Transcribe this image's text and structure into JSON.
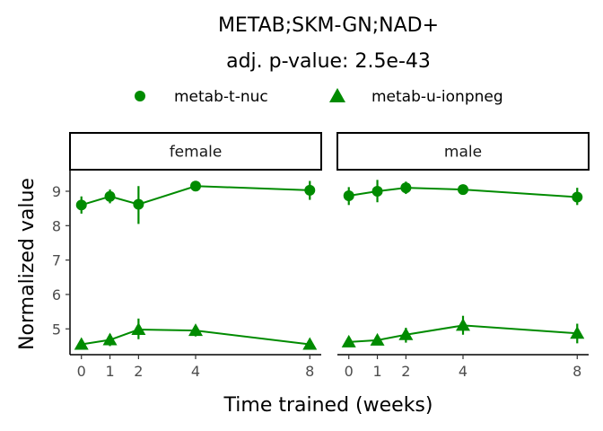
{
  "chart_data": {
    "type": "line",
    "title": "METAB;SKM-GN;NAD+",
    "subtitle": "adj. p-value: 2.5e-43",
    "xlabel": "Time trained (weeks)",
    "ylabel": "Normalized value",
    "x_ticks": [
      0,
      1,
      2,
      4,
      8
    ],
    "y_ticks": [
      5,
      6,
      7,
      8,
      9
    ],
    "xlim": [
      -0.4,
      8.4
    ],
    "ylim": [
      4.25,
      9.6
    ],
    "legend_position": "top",
    "color": "#008b00",
    "facets": [
      {
        "label": "female",
        "series": [
          {
            "name": "metab-t-nuc",
            "marker": "circle",
            "points": [
              {
                "x": 0,
                "y": 8.6,
                "lo": 8.35,
                "hi": 8.85
              },
              {
                "x": 1,
                "y": 8.85,
                "lo": 8.65,
                "hi": 9.05
              },
              {
                "x": 2,
                "y": 8.62,
                "lo": 8.05,
                "hi": 9.15
              },
              {
                "x": 4,
                "y": 9.15,
                "lo": 9.1,
                "hi": 9.2
              },
              {
                "x": 8,
                "y": 9.03,
                "lo": 8.75,
                "hi": 9.3
              }
            ]
          },
          {
            "name": "metab-u-ionpneg",
            "marker": "triangle",
            "points": [
              {
                "x": 0,
                "y": 4.55,
                "lo": 4.45,
                "hi": 4.65
              },
              {
                "x": 1,
                "y": 4.68,
                "lo": 4.5,
                "hi": 4.85
              },
              {
                "x": 2,
                "y": 4.98,
                "lo": 4.7,
                "hi": 5.3
              },
              {
                "x": 4,
                "y": 4.95,
                "lo": 4.78,
                "hi": 5.1
              },
              {
                "x": 8,
                "y": 4.55,
                "lo": 4.47,
                "hi": 4.63
              }
            ]
          }
        ]
      },
      {
        "label": "male",
        "series": [
          {
            "name": "metab-t-nuc",
            "marker": "circle",
            "points": [
              {
                "x": 0,
                "y": 8.87,
                "lo": 8.6,
                "hi": 9.12
              },
              {
                "x": 1,
                "y": 9.0,
                "lo": 8.68,
                "hi": 9.33
              },
              {
                "x": 2,
                "y": 9.1,
                "lo": 8.92,
                "hi": 9.28
              },
              {
                "x": 4,
                "y": 9.05,
                "lo": 9.0,
                "hi": 9.1
              },
              {
                "x": 8,
                "y": 8.83,
                "lo": 8.6,
                "hi": 9.1
              }
            ]
          },
          {
            "name": "metab-u-ionpneg",
            "marker": "triangle",
            "points": [
              {
                "x": 0,
                "y": 4.62,
                "lo": 4.52,
                "hi": 4.72
              },
              {
                "x": 1,
                "y": 4.67,
                "lo": 4.55,
                "hi": 4.8
              },
              {
                "x": 2,
                "y": 4.83,
                "lo": 4.6,
                "hi": 5.03
              },
              {
                "x": 4,
                "y": 5.1,
                "lo": 4.83,
                "hi": 5.38
              },
              {
                "x": 8,
                "y": 4.87,
                "lo": 4.58,
                "hi": 5.15
              }
            ]
          }
        ]
      }
    ]
  }
}
